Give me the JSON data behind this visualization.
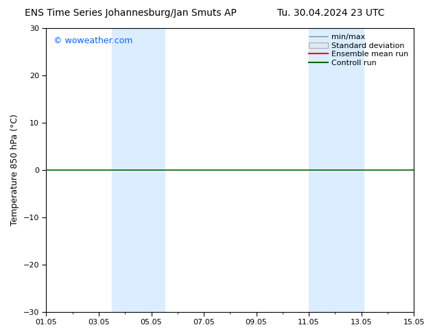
{
  "title_left": "ENS Time Series Johannesburg/Jan Smuts AP",
  "title_right": "Tu. 30.04.2024 23 UTC",
  "ylabel": "Temperature 850 hPa (°C)",
  "ylim": [
    -30,
    30
  ],
  "yticks": [
    -30,
    -20,
    -10,
    0,
    10,
    20,
    30
  ],
  "x_start": 1,
  "x_end": 15,
  "x_tick_labels": [
    "01.05",
    "03.05",
    "05.05",
    "07.05",
    "09.05",
    "11.05",
    "13.05",
    "15.05"
  ],
  "x_tick_days": [
    1,
    3,
    5,
    7,
    9,
    11,
    13,
    15
  ],
  "x_minor_ticks": [
    2,
    4,
    6,
    8,
    10,
    12,
    14
  ],
  "blue_bands": [
    {
      "x_start": 3.5,
      "x_end": 5.5
    },
    {
      "x_start": 11.0,
      "x_end": 13.1
    }
  ],
  "band_color": "#daeeff",
  "hline_y": 0,
  "hline_color": "#006600",
  "watermark": "© woweather.com",
  "watermark_color": "#0066ff",
  "legend_labels": [
    "min/max",
    "Standard deviation",
    "Ensemble mean run",
    "Controll run"
  ],
  "legend_colors": [
    "#888888",
    "#cccccc",
    "#ff0000",
    "#006600"
  ],
  "bg_color": "#ffffff",
  "title_fontsize": 10,
  "axis_label_fontsize": 9,
  "tick_fontsize": 8,
  "legend_fontsize": 8,
  "watermark_fontsize": 9
}
